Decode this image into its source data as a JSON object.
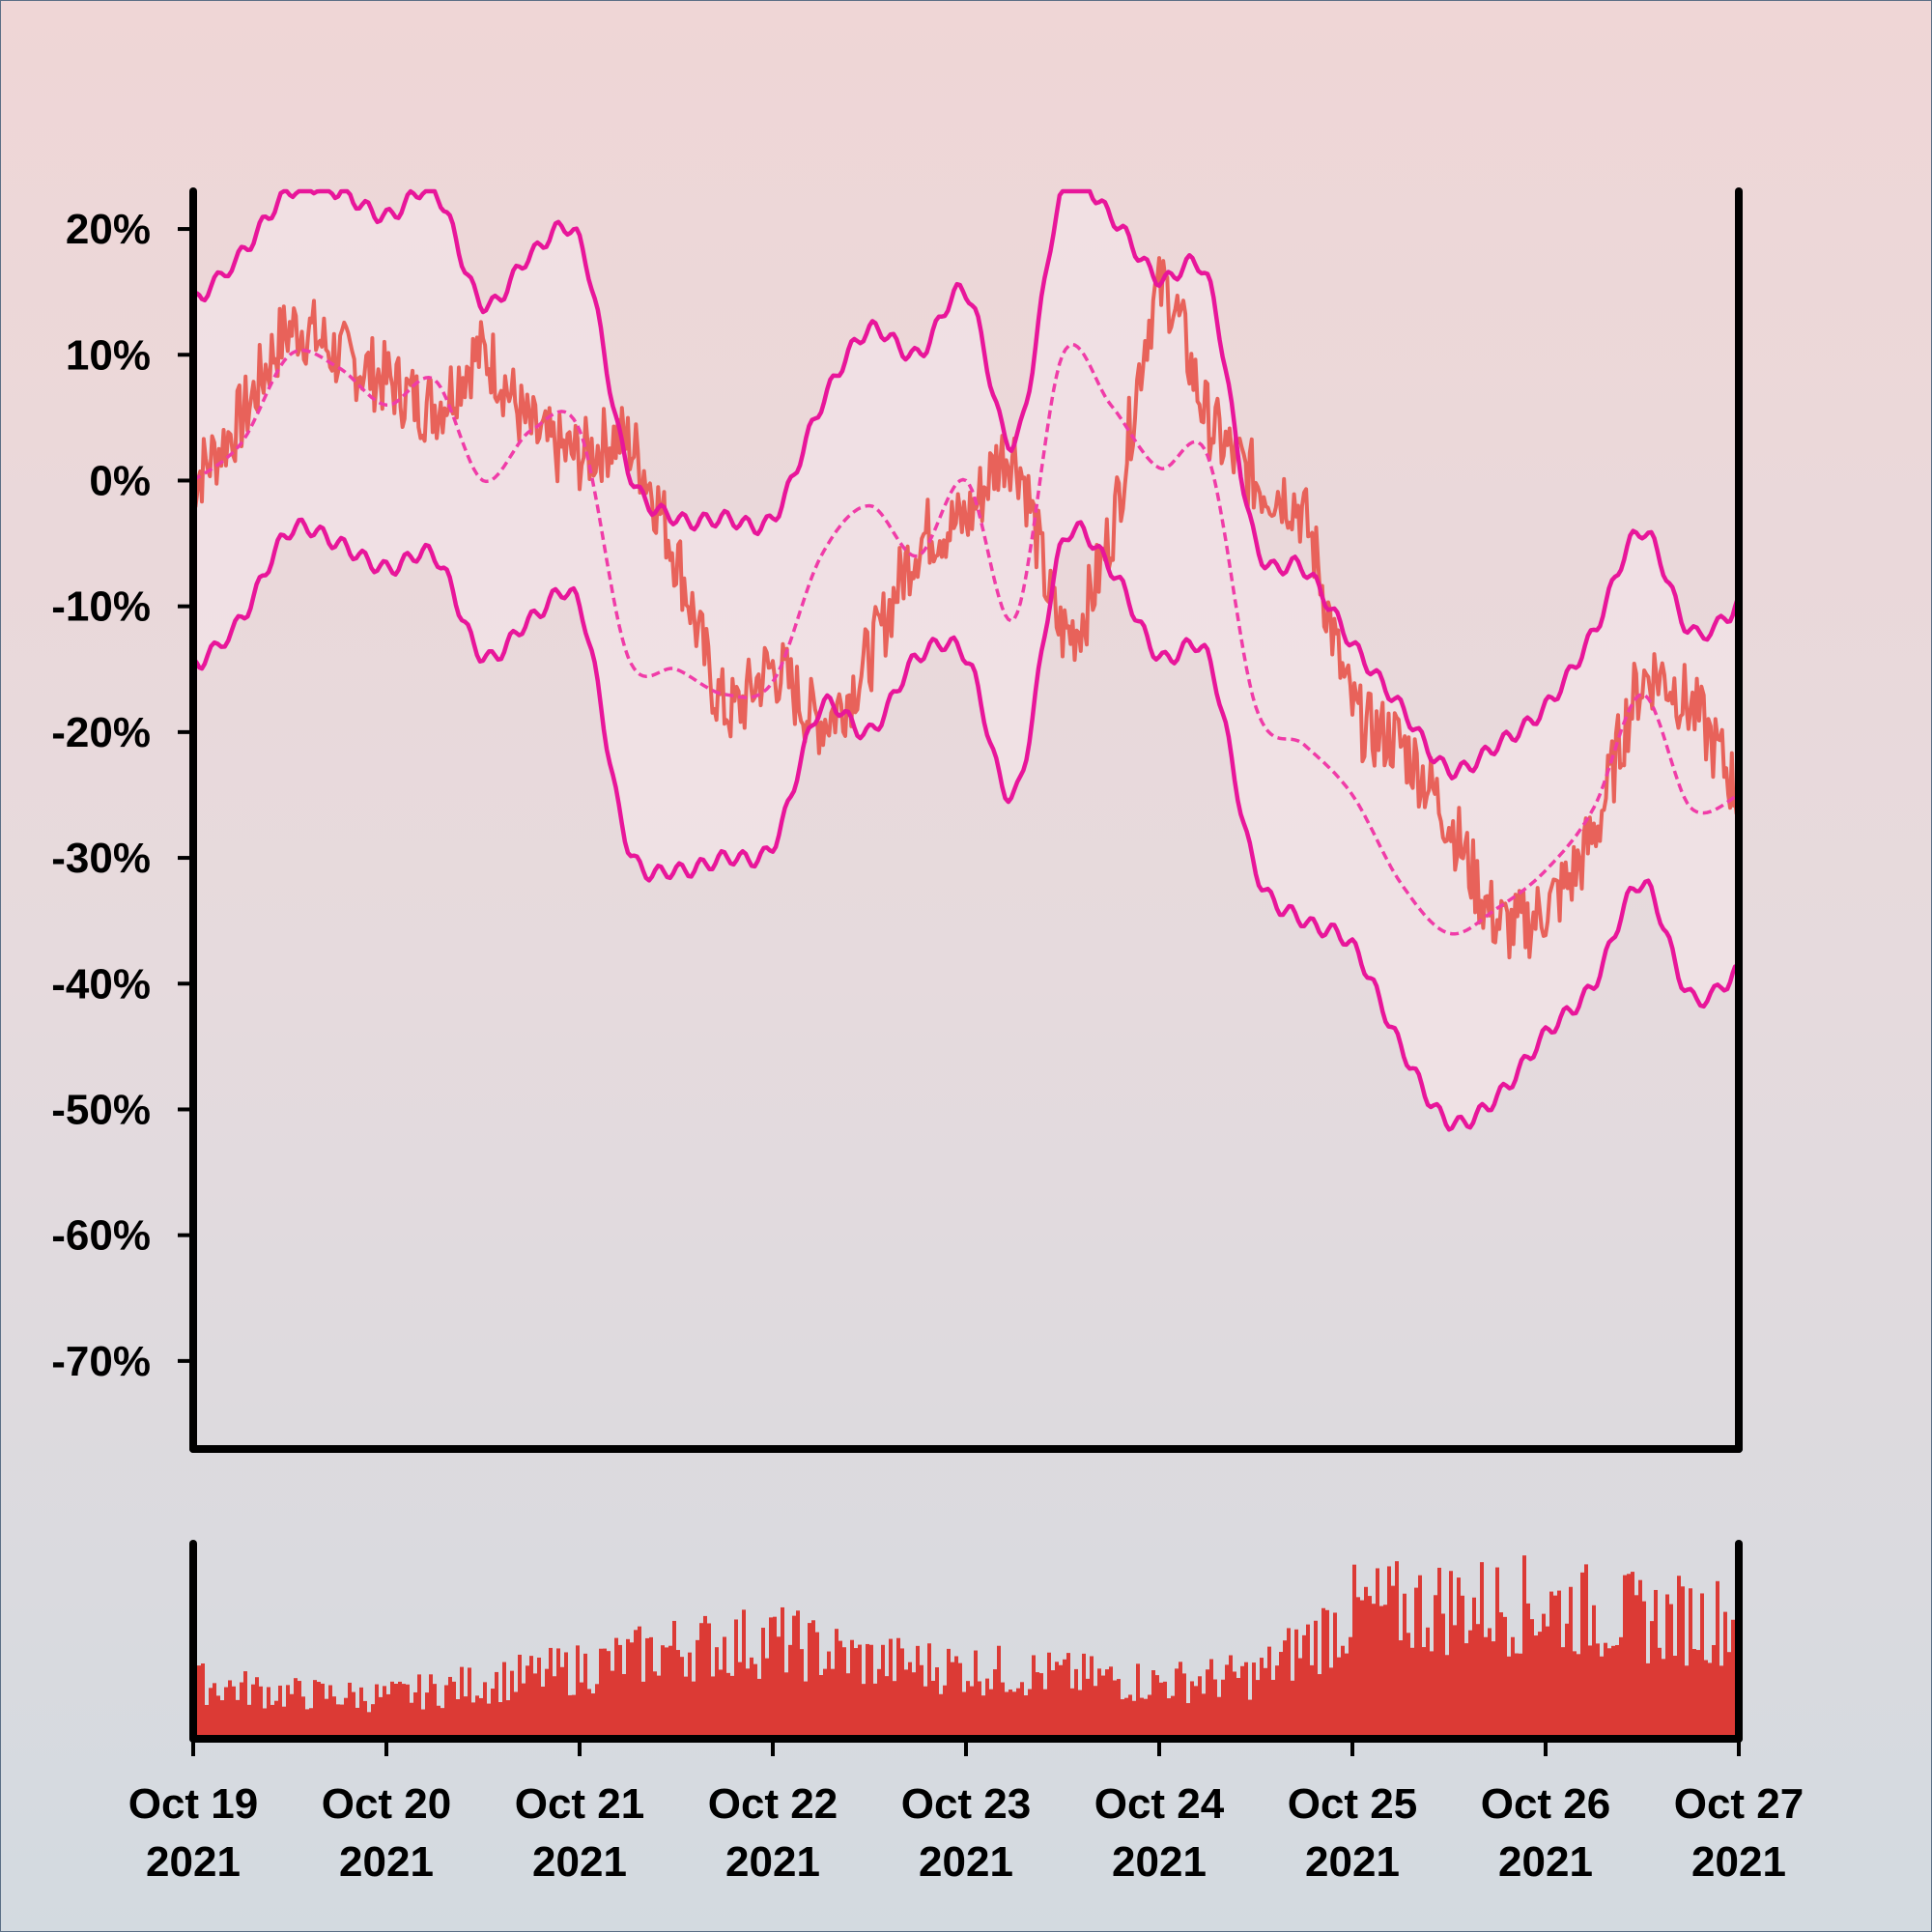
{
  "chart_data": {
    "type": "line",
    "title": "",
    "xlabel": "",
    "ylabel": "",
    "y_format": "percent",
    "ylim": [
      -77,
      23
    ],
    "yticks": [
      20,
      10,
      0,
      -10,
      -20,
      -30,
      -40,
      -50,
      -60,
      -70
    ],
    "ytick_labels": [
      "20%",
      "10%",
      "0%",
      "-10%",
      "-20%",
      "-30%",
      "-40%",
      "-50%",
      "-60%",
      "-70%"
    ],
    "x_domain": [
      "2021-10-19",
      "2021-10-27"
    ],
    "xticks": [
      {
        "date": "2021-10-19",
        "line1": "Oct 19",
        "line2": "2021"
      },
      {
        "date": "2021-10-20",
        "line1": "Oct 20",
        "line2": "2021"
      },
      {
        "date": "2021-10-21",
        "line1": "Oct 21",
        "line2": "2021"
      },
      {
        "date": "2021-10-22",
        "line1": "Oct 22",
        "line2": "2021"
      },
      {
        "date": "2021-10-23",
        "line1": "Oct 23",
        "line2": "2021"
      },
      {
        "date": "2021-10-24",
        "line1": "Oct 24",
        "line2": "2021"
      },
      {
        "date": "2021-10-25",
        "line1": "Oct 25",
        "line2": "2021"
      },
      {
        "date": "2021-10-26",
        "line1": "Oct 26",
        "line2": "2021"
      },
      {
        "date": "2021-10-27",
        "line1": "Oct 27",
        "line2": "2021"
      }
    ],
    "grid": false,
    "legend": "none",
    "colors": {
      "price": "#e8625a",
      "middle_band": "#f03ca8",
      "bands": "#e8169a",
      "band_fill": "#f1e2e6",
      "volume": "#dc3a35"
    },
    "series": [
      {
        "role": "price",
        "x": [
          "2021-10-19 00:00",
          "2021-10-19 06:00",
          "2021-10-19 12:00",
          "2021-10-19 18:00",
          "2021-10-20 00:00",
          "2021-10-20 06:00",
          "2021-10-20 12:00",
          "2021-10-20 18:00",
          "2021-10-21 00:00",
          "2021-10-21 06:00",
          "2021-10-21 12:00",
          "2021-10-21 18:00",
          "2021-10-22 00:00",
          "2021-10-22 06:00",
          "2021-10-22 12:00",
          "2021-10-22 18:00",
          "2021-10-23 00:00",
          "2021-10-23 06:00",
          "2021-10-23 12:00",
          "2021-10-23 18:00",
          "2021-10-24 00:00",
          "2021-10-24 06:00",
          "2021-10-24 12:00",
          "2021-10-24 18:00",
          "2021-10-25 00:00",
          "2021-10-25 06:00",
          "2021-10-25 12:00",
          "2021-10-25 18:00",
          "2021-10-26 00:00",
          "2021-10-26 06:00",
          "2021-10-26 12:00",
          "2021-10-26 18:00",
          "2021-10-27 00:00"
        ],
        "y": [
          0,
          5,
          12,
          10,
          8,
          6,
          10,
          4,
          2,
          3,
          -6,
          -18,
          -15,
          -19,
          -14,
          -5,
          -3,
          2,
          -12,
          -4,
          15,
          5,
          0,
          -3,
          -18,
          -21,
          -27,
          -35,
          -34,
          -28,
          -16,
          -18,
          -25
        ]
      },
      {
        "role": "middle_band",
        "x": [
          "2021-10-19 00:00",
          "2021-10-19 06:00",
          "2021-10-19 12:00",
          "2021-10-19 18:00",
          "2021-10-20 00:00",
          "2021-10-20 06:00",
          "2021-10-20 12:00",
          "2021-10-20 18:00",
          "2021-10-21 00:00",
          "2021-10-21 06:00",
          "2021-10-21 12:00",
          "2021-10-21 18:00",
          "2021-10-22 00:00",
          "2021-10-22 06:00",
          "2021-10-22 12:00",
          "2021-10-22 18:00",
          "2021-10-23 00:00",
          "2021-10-23 06:00",
          "2021-10-23 12:00",
          "2021-10-23 18:00",
          "2021-10-24 00:00",
          "2021-10-24 06:00",
          "2021-10-24 12:00",
          "2021-10-24 18:00",
          "2021-10-25 00:00",
          "2021-10-25 06:00",
          "2021-10-25 12:00",
          "2021-10-25 18:00",
          "2021-10-26 00:00",
          "2021-10-26 06:00",
          "2021-10-26 12:00",
          "2021-10-26 18:00",
          "2021-10-27 00:00"
        ],
        "y": [
          0,
          3,
          10,
          9,
          6,
          8,
          0,
          4,
          4,
          -14,
          -15,
          -17,
          -16,
          -6,
          -2,
          -6,
          0,
          -11,
          10,
          6,
          1,
          2,
          -18,
          -21,
          -25,
          -32,
          -36,
          -34,
          -31,
          -26,
          -17,
          -26,
          -25
        ]
      },
      {
        "role": "upper_band",
        "x": [
          "2021-10-19 00:00",
          "2021-10-19 06:00",
          "2021-10-19 12:00",
          "2021-10-19 18:00",
          "2021-10-20 00:00",
          "2021-10-20 06:00",
          "2021-10-20 12:00",
          "2021-10-20 18:00",
          "2021-10-21 00:00",
          "2021-10-21 06:00",
          "2021-10-21 12:00",
          "2021-10-21 18:00",
          "2021-10-22 00:00",
          "2021-10-22 06:00",
          "2021-10-22 12:00",
          "2021-10-22 18:00",
          "2021-10-23 00:00",
          "2021-10-23 06:00",
          "2021-10-23 12:00",
          "2021-10-23 18:00",
          "2021-10-24 00:00",
          "2021-10-24 06:00",
          "2021-10-24 12:00",
          "2021-10-24 18:00",
          "2021-10-25 00:00",
          "2021-10-25 06:00",
          "2021-10-25 12:00",
          "2021-10-25 18:00",
          "2021-10-26 00:00",
          "2021-10-26 06:00",
          "2021-10-26 12:00",
          "2021-10-26 18:00",
          "2021-10-27 00:00"
        ],
        "y": [
          14,
          18,
          23,
          23,
          21,
          23,
          14,
          18,
          19,
          1,
          -3,
          -3,
          -3,
          6,
          12,
          10,
          15,
          3,
          23,
          21,
          16,
          16,
          -5,
          -7,
          -13,
          -18,
          -23,
          -21,
          -18,
          -12,
          -4,
          -12,
          -10
        ]
      },
      {
        "role": "lower_band",
        "x": [
          "2021-10-19 00:00",
          "2021-10-19 06:00",
          "2021-10-19 12:00",
          "2021-10-19 18:00",
          "2021-10-20 00:00",
          "2021-10-20 06:00",
          "2021-10-20 12:00",
          "2021-10-20 18:00",
          "2021-10-21 00:00",
          "2021-10-21 06:00",
          "2021-10-21 12:00",
          "2021-10-21 18:00",
          "2021-10-22 00:00",
          "2021-10-22 06:00",
          "2021-10-22 12:00",
          "2021-10-22 18:00",
          "2021-10-23 00:00",
          "2021-10-23 06:00",
          "2021-10-23 12:00",
          "2021-10-23 18:00",
          "2021-10-24 00:00",
          "2021-10-24 06:00",
          "2021-10-24 12:00",
          "2021-10-24 18:00",
          "2021-10-25 00:00",
          "2021-10-25 06:00",
          "2021-10-25 12:00",
          "2021-10-25 18:00",
          "2021-10-26 00:00",
          "2021-10-26 06:00",
          "2021-10-26 12:00",
          "2021-10-26 18:00",
          "2021-10-27 00:00"
        ],
        "y": [
          -15,
          -11,
          -4,
          -5,
          -7,
          -6,
          -14,
          -11,
          -10,
          -29,
          -31,
          -30,
          -29,
          -18,
          -20,
          -14,
          -14,
          -25,
          -5,
          -7,
          -14,
          -14,
          -31,
          -35,
          -37,
          -45,
          -51,
          -49,
          -44,
          -40,
          -32,
          -41,
          -39
        ]
      }
    ],
    "volume": {
      "x": [
        "2021-10-19 00:00",
        "2021-10-19 12:00",
        "2021-10-20 00:00",
        "2021-10-20 12:00",
        "2021-10-21 00:00",
        "2021-10-21 12:00",
        "2021-10-22 00:00",
        "2021-10-22 12:00",
        "2021-10-23 00:00",
        "2021-10-23 12:00",
        "2021-10-24 00:00",
        "2021-10-24 12:00",
        "2021-10-25 00:00",
        "2021-10-25 12:00",
        "2021-10-26 00:00",
        "2021-10-26 12:00",
        "2021-10-27 00:00"
      ],
      "values": [
        40,
        32,
        30,
        40,
        50,
        65,
        70,
        55,
        50,
        45,
        40,
        45,
        90,
        95,
        95,
        85,
        85
      ],
      "ylim": [
        0,
        125
      ]
    }
  }
}
